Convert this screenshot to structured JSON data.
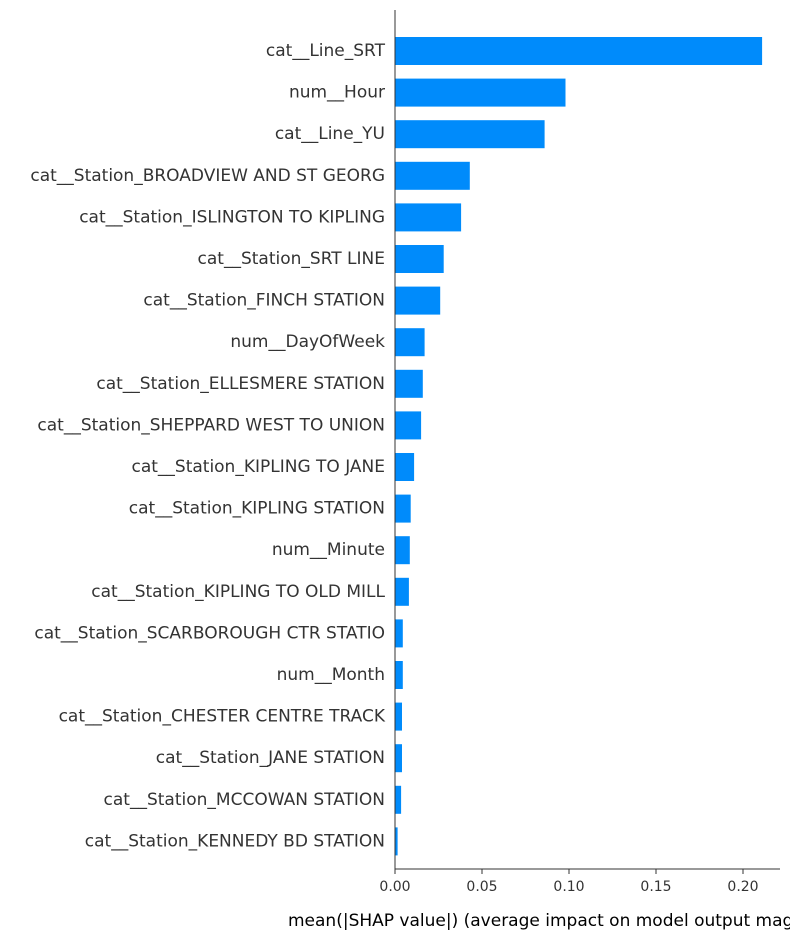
{
  "chart_data": {
    "type": "bar",
    "orientation": "horizontal",
    "title": "",
    "xlabel": "mean(|SHAP value|) (average impact on model output magnitude)",
    "ylabel": "",
    "xlim": [
      0,
      0.22
    ],
    "xticks": [
      0.0,
      0.05,
      0.1,
      0.15,
      0.2
    ],
    "xtick_labels": [
      "0.00",
      "0.05",
      "0.10",
      "0.15",
      "0.20"
    ],
    "grid": false,
    "legend": "none",
    "bar_color": "#008bfb",
    "categories": [
      "cat__Line_SRT",
      "num__Hour",
      "cat__Line_YU",
      "cat__Station_BROADVIEW AND ST GEORG",
      "cat__Station_ISLINGTON TO KIPLING",
      "cat__Station_SRT LINE",
      "cat__Station_FINCH STATION",
      "num__DayOfWeek",
      "cat__Station_ELLESMERE STATION",
      "cat__Station_SHEPPARD WEST TO UNION",
      "cat__Station_KIPLING TO JANE",
      "cat__Station_KIPLING STATION",
      "num__Minute",
      "cat__Station_KIPLING TO OLD MILL",
      "cat__Station_SCARBOROUGH CTR STATIO",
      "num__Month",
      "cat__Station_CHESTER CENTRE TRACK",
      "cat__Station_JANE STATION",
      "cat__Station_MCCOWAN STATION",
      "cat__Station_KENNEDY BD STATION"
    ],
    "values": [
      0.211,
      0.098,
      0.086,
      0.043,
      0.038,
      0.028,
      0.026,
      0.017,
      0.016,
      0.015,
      0.011,
      0.009,
      0.0085,
      0.008,
      0.0045,
      0.0045,
      0.004,
      0.004,
      0.0035,
      0.0015
    ]
  }
}
